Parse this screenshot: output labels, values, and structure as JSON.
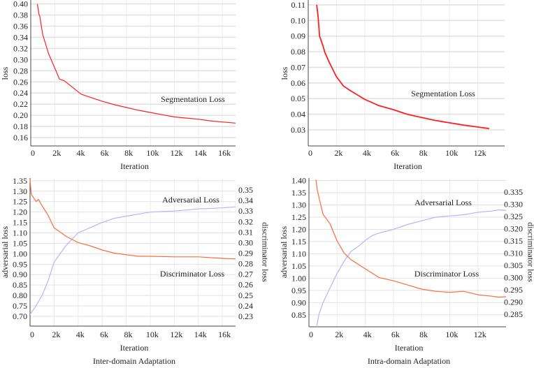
{
  "chart_data": [
    {
      "type": "line",
      "xlabel": "Iteration",
      "ylabel": "loss",
      "xlim": [
        0,
        17100
      ],
      "ylim": [
        0.145,
        0.407
      ],
      "x_ticks": [
        [
          0,
          "0"
        ],
        [
          2000,
          "2k"
        ],
        [
          4000,
          "4k"
        ],
        [
          6000,
          "6k"
        ],
        [
          8000,
          "8k"
        ],
        [
          10000,
          "10k"
        ],
        [
          12000,
          "12k"
        ],
        [
          14000,
          "14k"
        ],
        [
          16000,
          "16k"
        ]
      ],
      "y_ticks": [
        "0.16",
        "0.18",
        "0.20",
        "0.22",
        "0.24",
        "0.26",
        "0.28",
        "0.30",
        "0.32",
        "0.34",
        "0.36",
        "0.38",
        "0.40"
      ],
      "grid": true,
      "series": [
        {
          "name": "Segmentation Loss",
          "axis": "left",
          "color": "#ff1f1f",
          "x": [
            550,
            700,
            750,
            1000,
            1500,
            2000,
            2400,
            2800,
            3500,
            4200,
            5000,
            6000,
            7000,
            8000,
            9000,
            10000,
            11000,
            12000,
            13000,
            14000,
            15000,
            16000,
            17100
          ],
          "y": [
            0.4,
            0.38,
            0.378,
            0.345,
            0.31,
            0.285,
            0.265,
            0.262,
            0.25,
            0.238,
            0.232,
            0.225,
            0.219,
            0.214,
            0.209,
            0.205,
            0.201,
            0.197,
            0.195,
            0.193,
            0.19,
            0.188,
            0.186
          ]
        }
      ]
    },
    {
      "type": "line",
      "xlabel": "Iteration",
      "ylabel": "loss",
      "xlim": [
        0,
        13900
      ],
      "ylim": [
        0.0197,
        0.1131
      ],
      "x_ticks": [
        [
          0,
          "0"
        ],
        [
          2000,
          "2k"
        ],
        [
          4000,
          "4k"
        ],
        [
          6000,
          "6k"
        ],
        [
          8000,
          "8k"
        ],
        [
          10000,
          "10k"
        ],
        [
          12000,
          "12k"
        ]
      ],
      "y_ticks": [
        "0.03",
        "0.04",
        "0.05",
        "0.06",
        "0.07",
        "0.08",
        "0.09",
        "0.10",
        "0.11"
      ],
      "grid": true,
      "series": [
        {
          "name": "Segmentation Loss",
          "axis": "left",
          "color": "#ff1f1f",
          "x": [
            600,
            700,
            800,
            1000,
            1200,
            1500,
            2000,
            2500,
            3000,
            4000,
            5000,
            6000,
            7000,
            8000,
            9000,
            10000,
            11000,
            12000,
            12800
          ],
          "y": [
            0.11,
            0.102,
            0.09,
            0.085,
            0.079,
            0.073,
            0.064,
            0.058,
            0.055,
            0.0495,
            0.0455,
            0.043,
            0.04,
            0.038,
            0.036,
            0.0345,
            0.033,
            0.0318,
            0.0308
          ]
        }
      ]
    },
    {
      "type": "line",
      "title": "Inter-domain Adaptation",
      "xlabel": "Iteration",
      "ylabel": "adversarial loss",
      "ylabel_right": "discriminator loss",
      "xlim": [
        0,
        17100
      ],
      "ylim": [
        0.653,
        1.363
      ],
      "ylim_right": [
        0.2207,
        0.3613
      ],
      "x_ticks": [
        [
          0,
          "0"
        ],
        [
          2000,
          "2k"
        ],
        [
          4000,
          "4k"
        ],
        [
          6000,
          "6k"
        ],
        [
          8000,
          "8k"
        ],
        [
          10000,
          "10k"
        ],
        [
          12000,
          "12k"
        ],
        [
          14000,
          "14k"
        ],
        [
          16000,
          "16k"
        ]
      ],
      "y_ticks": [
        "0.70",
        "0.75",
        "0.80",
        "0.85",
        "0.90",
        "0.95",
        "1.00",
        "1.05",
        "1.10",
        "1.15",
        "1.20",
        "1.25",
        "1.30",
        "1.35"
      ],
      "y_ticks_right": [
        "0.23",
        "0.24",
        "0.25",
        "0.26",
        "0.27",
        "0.28",
        "0.29",
        "0.30",
        "0.31",
        "0.32",
        "0.33",
        "0.34",
        "0.35"
      ],
      "grid": true,
      "series": [
        {
          "name": "Adversarial Loss",
          "axis": "left",
          "color": "#b4b4ff",
          "x": [
            0,
            500,
            1000,
            1500,
            2000,
            2500,
            3000,
            3500,
            4000,
            5000,
            6000,
            7000,
            8000,
            9000,
            10000,
            12000,
            14000,
            16000,
            17100
          ],
          "y": [
            0.71,
            0.75,
            0.8,
            0.87,
            0.96,
            1.0,
            1.04,
            1.07,
            1.1,
            1.125,
            1.15,
            1.17,
            1.18,
            1.19,
            1.2,
            1.205,
            1.215,
            1.22,
            1.225
          ]
        },
        {
          "name": "Discriminator Loss",
          "axis": "right",
          "color": "#ff6a3d",
          "x": [
            0,
            100,
            500,
            700,
            1000,
            1500,
            2000,
            3000,
            4000,
            5000,
            6000,
            7000,
            8000,
            9000,
            10000,
            12000,
            14000,
            16000,
            17100
          ],
          "y": [
            0.36,
            0.346,
            0.339,
            0.341,
            0.335,
            0.326,
            0.314,
            0.306,
            0.3,
            0.297,
            0.293,
            0.29,
            0.2885,
            0.287,
            0.287,
            0.2865,
            0.2865,
            0.285,
            0.2845
          ]
        }
      ]
    },
    {
      "type": "line",
      "title": "Intra-domain Adaptation",
      "xlabel": "Iteration",
      "ylabel": "adversarial loss",
      "ylabel_right": "discriminator loss",
      "xlim": [
        0,
        14000
      ],
      "ylim": [
        0.801,
        1.41
      ],
      "ylim_right": [
        0.2799,
        0.3407
      ],
      "x_ticks": [
        [
          0,
          "0"
        ],
        [
          2000,
          "2k"
        ],
        [
          4000,
          "4k"
        ],
        [
          6000,
          "6k"
        ],
        [
          8000,
          "8k"
        ],
        [
          10000,
          "10k"
        ],
        [
          12000,
          "12k"
        ]
      ],
      "y_ticks": [
        "0.85",
        "0.90",
        "0.95",
        "1.00",
        "1.05",
        "1.10",
        "1.15",
        "1.20",
        "1.25",
        "1.30",
        "1.35",
        "1.40"
      ],
      "y_ticks_right": [
        "0.285",
        "0.290",
        "0.295",
        "0.300",
        "0.305",
        "0.310",
        "0.315",
        "0.320",
        "0.325",
        "0.330",
        "0.335"
      ],
      "grid": true,
      "series": [
        {
          "name": "Adversarial Loss",
          "axis": "left",
          "color": "#b4b4ff",
          "x": [
            550,
            700,
            1000,
            1500,
            2000,
            2500,
            3000,
            3500,
            4000,
            4500,
            5000,
            6000,
            7000,
            8000,
            9000,
            10000,
            11000,
            12000,
            13000,
            13500,
            14000
          ],
          "y": [
            0.8,
            0.85,
            0.9,
            0.96,
            1.02,
            1.07,
            1.11,
            1.13,
            1.155,
            1.175,
            1.185,
            1.2,
            1.22,
            1.235,
            1.25,
            1.255,
            1.26,
            1.27,
            1.275,
            1.28,
            1.277
          ]
        },
        {
          "name": "Discriminator Loss",
          "axis": "right",
          "color": "#ff6a3d",
          "x": [
            500,
            600,
            800,
            1000,
            1500,
            2000,
            2500,
            3000,
            4000,
            5000,
            6000,
            7000,
            8000,
            9000,
            10000,
            11000,
            12000,
            13000,
            13500,
            14000
          ],
          "y": [
            0.34,
            0.3356,
            0.3307,
            0.3259,
            0.322,
            0.315,
            0.31,
            0.3073,
            0.3036,
            0.3,
            0.2987,
            0.297,
            0.2953,
            0.2944,
            0.294,
            0.2944,
            0.293,
            0.2924,
            0.292,
            0.2922
          ]
        }
      ]
    }
  ]
}
